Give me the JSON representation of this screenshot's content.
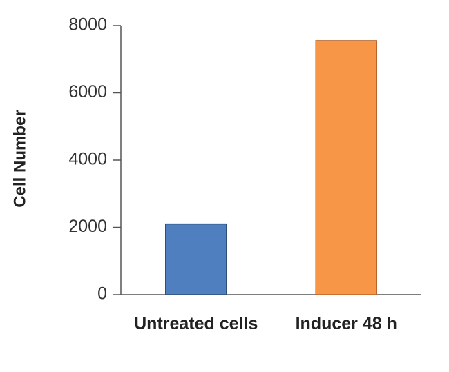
{
  "chart_data": {
    "type": "bar",
    "y_label": "Cell Number",
    "categories": [
      "Untreated cells",
      "Inducer 48 h"
    ],
    "values": [
      2100,
      7550
    ],
    "colors": [
      "#4f7fbf",
      "#f79646"
    ],
    "ylim": [
      0,
      8000
    ],
    "yticks": [
      0,
      2000,
      4000,
      6000,
      8000
    ]
  }
}
